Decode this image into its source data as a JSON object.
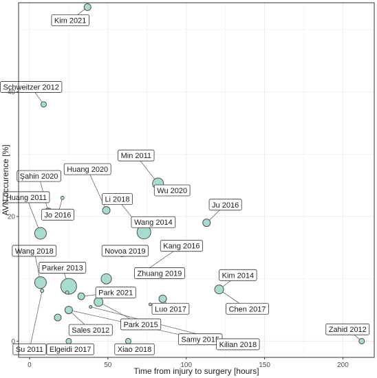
{
  "chart_data": {
    "type": "scatter",
    "xlabel": "Time from injury to surgery [hours]",
    "ylabel": "AVN occurence [%]",
    "xlim": [
      -7,
      220
    ],
    "ylim": [
      -2.6,
      54.3
    ],
    "x_ticks": [
      0,
      50,
      100,
      150,
      200
    ],
    "y_ticks": [
      0,
      20,
      40
    ],
    "grid": true,
    "colors": {
      "point_fill": "#a8dcd0",
      "point_stroke": "#4d4d4d",
      "grid": "#ebebeb",
      "panel_border": "#333333"
    },
    "points": [
      {
        "label": "Kim 2021",
        "x": 37,
        "y": 53.6,
        "size": 10,
        "lx": 26,
        "ly": 51.5
      },
      {
        "label": "Schweitzer 2012",
        "x": 9,
        "y": 38,
        "size": 8,
        "lx": 1,
        "ly": 40.8
      },
      {
        "label": "Min 2011",
        "x": 82,
        "y": 25.3,
        "size": 16,
        "lx": 68,
        "ly": 29.8
      },
      {
        "label": "Wu 2020",
        "x": 86,
        "y": 23.6,
        "size": 4,
        "lx": 91,
        "ly": 24.2
      },
      {
        "label": "Huang 2020",
        "x": 49,
        "y": 21,
        "size": 11,
        "lx": 37,
        "ly": 27.6
      },
      {
        "label": "Şahin 2020",
        "x": 12,
        "y": 20.7,
        "size": 12,
        "lx": 6,
        "ly": 26.5
      },
      {
        "label": "Huang 2011",
        "x": 7,
        "y": 17.3,
        "size": 17,
        "lx": -2,
        "ly": 23.1
      },
      {
        "label": "Jo 2016",
        "x": 21,
        "y": 23,
        "size": 5,
        "lx": 18,
        "ly": 20.3
      },
      {
        "label": "Li 2018",
        "x": 73,
        "y": 17.5,
        "size": 20,
        "lx": 56,
        "ly": 22.8
      },
      {
        "label": "Wang 2014",
        "x": 75,
        "y": 17.5,
        "size": 0,
        "lx": 79,
        "ly": 19.1
      },
      {
        "label": "Ju 2016",
        "x": 113,
        "y": 19,
        "size": 11,
        "lx": 125,
        "ly": 21.9
      },
      {
        "label": "Novoa 2019",
        "x": 59,
        "y": 14.4,
        "size": 15,
        "lx": 61,
        "ly": 14.5
      },
      {
        "label": "Kang 2016",
        "x": 71,
        "y": 10.8,
        "size": 13,
        "lx": 97,
        "ly": 15.3
      },
      {
        "label": "Zhuang 2019",
        "x": 71,
        "y": 10.8,
        "size": 0,
        "lx": 83,
        "ly": 10.9
      },
      {
        "label": "Wang 2018",
        "x": 7,
        "y": 9.4,
        "size": 17,
        "lx": 3,
        "ly": 14.5
      },
      {
        "label": "Parker 2013",
        "x": 25,
        "y": 8.8,
        "size": 23,
        "lx": 21,
        "ly": 11.8
      },
      {
        "label": "",
        "x": 49,
        "y": 10,
        "size": 15,
        "lx": null,
        "ly": null
      },
      {
        "label": "",
        "x": 8,
        "y": 8.1,
        "size": 5,
        "lx": null,
        "ly": null
      },
      {
        "label": "",
        "x": 24,
        "y": 7.8,
        "size": 5,
        "lx": null,
        "ly": null
      },
      {
        "label": "Kim 2014",
        "x": 121,
        "y": 8.3,
        "size": 13,
        "lx": 133,
        "ly": 10.6
      },
      {
        "label": "Park 2021",
        "x": 33,
        "y": 7.2,
        "size": 10,
        "lx": 55,
        "ly": 7.8
      },
      {
        "label": "Chen 2017",
        "x": 121,
        "y": 8.3,
        "size": 0,
        "lx": 139,
        "ly": 5.2
      },
      {
        "label": "Luo 2017",
        "x": 85,
        "y": 6.8,
        "size": 11,
        "lx": 90,
        "ly": 5.2
      },
      {
        "label": "",
        "x": 77,
        "y": 5.9,
        "size": 4,
        "lx": null,
        "ly": null
      },
      {
        "label": "",
        "x": 44,
        "y": 6.3,
        "size": 13,
        "lx": null,
        "ly": null
      },
      {
        "label": "",
        "x": 39,
        "y": 5.5,
        "size": 4,
        "lx": null,
        "ly": null
      },
      {
        "label": "Park 2015",
        "x": 44,
        "y": 6.3,
        "size": 0,
        "lx": 71,
        "ly": 2.7
      },
      {
        "label": "Sales 2012",
        "x": 25,
        "y": 5,
        "size": 11,
        "lx": 39,
        "ly": 1.8
      },
      {
        "label": "",
        "x": 18,
        "y": 3.8,
        "size": 10,
        "lx": null,
        "ly": null
      },
      {
        "label": "Samy 2015",
        "x": 25,
        "y": 5,
        "size": 0,
        "lx": 109,
        "ly": 0.3
      },
      {
        "label": "Kilian 2018",
        "x": 39,
        "y": 5.5,
        "size": 0,
        "lx": 133,
        "ly": -0.5
      },
      {
        "label": "Zahid 2012",
        "x": 212,
        "y": 0,
        "size": 8,
        "lx": 203,
        "ly": 1.9
      },
      {
        "label": "Su 2011",
        "x": 8,
        "y": 8.1,
        "size": 0,
        "lx": 0,
        "ly": -1.3
      },
      {
        "label": "Elgeidi 2017",
        "x": 25,
        "y": 0,
        "size": 8,
        "lx": 26,
        "ly": -1.3
      },
      {
        "label": "Xiao 2018",
        "x": 63,
        "y": 0,
        "size": 8,
        "lx": 67,
        "ly": -1.3
      }
    ]
  }
}
